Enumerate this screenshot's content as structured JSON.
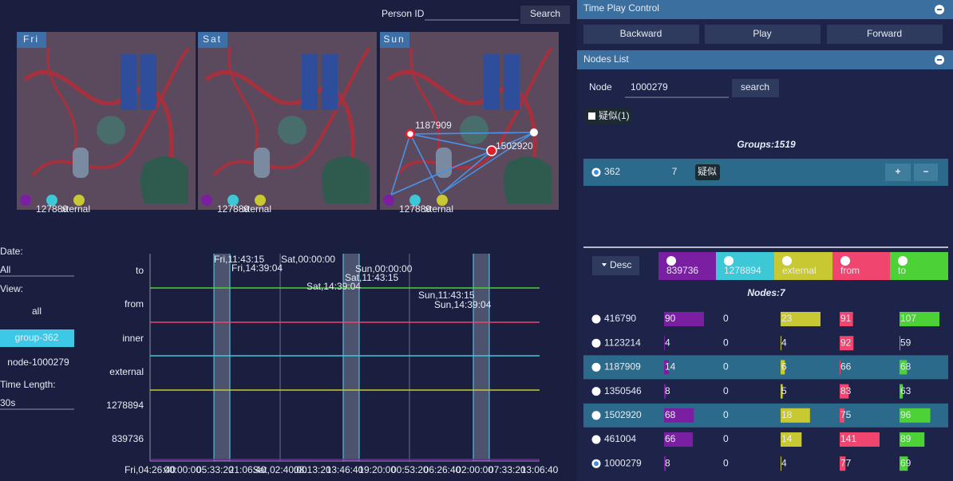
{
  "search": {
    "label": "Person ID",
    "button": "Search"
  },
  "maps": [
    {
      "day": "Fri"
    },
    {
      "day": "Sat"
    },
    {
      "day": "Sun",
      "nodes": [
        "1187909",
        "1502920"
      ]
    }
  ],
  "map_legend": [
    "127889",
    "xternal"
  ],
  "controls": {
    "date_label": "Date:",
    "date": "All",
    "view_label": "View:",
    "views": [
      "all",
      "group-362",
      "node-1000279"
    ],
    "time_length_label": "Time Length:",
    "time_length": "30s"
  },
  "timeline": {
    "rows": [
      "to",
      "from",
      "inner",
      "external",
      "1278894",
      "839736"
    ],
    "x_labels": [
      "Fri,04:26:40",
      "00:00:00",
      "05:33:20",
      "21:06:40",
      "Sat,02:40:00",
      "08:13:20",
      "13:46:40",
      "19:20:00",
      "00:53:20",
      "06:26:40",
      "02:00:00",
      "07:33:20",
      "13:06:40"
    ],
    "annotations": [
      "Fri,11:43:15",
      "Fri,14:39:04",
      "Sat,00:00:00",
      "Sat,11:43:15",
      "Sat,14:39:04",
      "Sun,00:00:00",
      "Sun,11:43:15",
      "Sun,14:39:04"
    ]
  },
  "play": {
    "title": "Time Play Control",
    "buttons": [
      "Backward",
      "Play",
      "Forward"
    ]
  },
  "nodes_list": {
    "title": "Nodes List",
    "node_label": "Node",
    "node_value": "1000279",
    "search": "search",
    "filter": "疑似(1)",
    "groups": "Groups:1519",
    "group": {
      "id": "362",
      "count": 7,
      "tag": "疑似",
      "plus": "+",
      "minus": "−"
    }
  },
  "table": {
    "sort": "Desc",
    "columns": [
      "839736",
      "1278894",
      "external",
      "from",
      "to"
    ],
    "colors": [
      "#7b1fa2",
      "#3dc8d8",
      "#c8c832",
      "#f0456e",
      "#4cd137"
    ],
    "count": "Nodes:7",
    "rows": [
      {
        "id": "416790",
        "values": [
          90,
          0,
          23,
          91,
          107
        ]
      },
      {
        "id": "1123214",
        "values": [
          4,
          0,
          4,
          92,
          59
        ]
      },
      {
        "id": "1187909",
        "values": [
          14,
          0,
          6,
          66,
          68
        ]
      },
      {
        "id": "1350546",
        "values": [
          8,
          0,
          5,
          83,
          63
        ]
      },
      {
        "id": "1502920",
        "values": [
          68,
          0,
          18,
          75,
          96
        ]
      },
      {
        "id": "461004",
        "values": [
          66,
          0,
          14,
          141,
          89
        ]
      },
      {
        "id": "1000279",
        "values": [
          8,
          0,
          4,
          77,
          69
        ]
      }
    ]
  }
}
